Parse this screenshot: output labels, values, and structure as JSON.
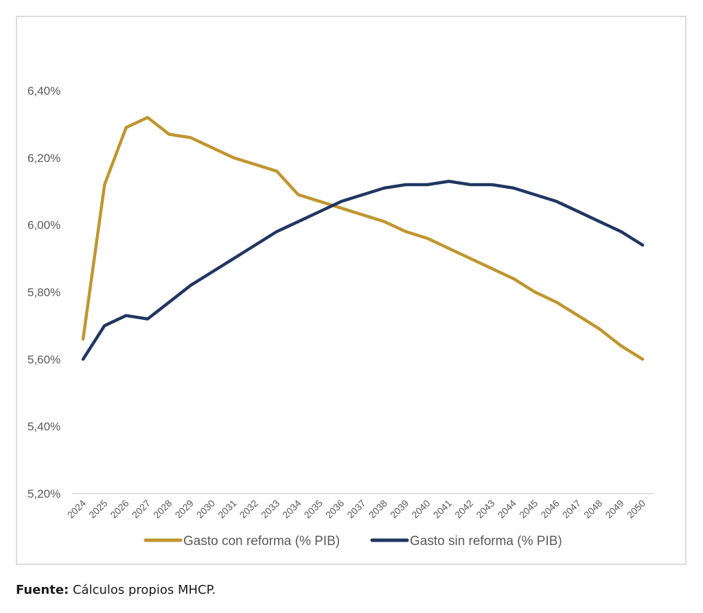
{
  "chart_data": {
    "type": "line",
    "title": "",
    "xlabel": "",
    "ylabel": "",
    "x": [
      "2024",
      "2025",
      "2026",
      "2027",
      "2028",
      "2029",
      "2030",
      "2031",
      "2032",
      "2033",
      "2034",
      "2035",
      "2036",
      "2037",
      "2038",
      "2039",
      "2040",
      "2041",
      "2042",
      "2043",
      "2044",
      "2045",
      "2046",
      "2047",
      "2048",
      "2049",
      "2050"
    ],
    "ylim": [
      5.2,
      6.4
    ],
    "yticks": [
      5.2,
      5.4,
      5.6,
      5.8,
      6.0,
      6.2,
      6.4
    ],
    "ytick_labels": [
      "5,20%",
      "5,40%",
      "5,60%",
      "5,80%",
      "6,00%",
      "6,20%",
      "6,40%"
    ],
    "grid": false,
    "legend_position": "bottom",
    "series": [
      {
        "name": "Gasto con reforma (% PIB)",
        "color": "#BF9630",
        "values": [
          5.66,
          6.12,
          6.29,
          6.32,
          6.27,
          6.26,
          6.23,
          6.2,
          6.18,
          6.16,
          6.09,
          6.07,
          6.05,
          6.03,
          6.01,
          5.98,
          5.96,
          5.93,
          5.9,
          5.87,
          5.84,
          5.8,
          5.77,
          5.73,
          5.69,
          5.64,
          5.6
        ]
      },
      {
        "name": "Gasto sin reforma (% PIB)",
        "color": "#213661",
        "values": [
          5.6,
          5.7,
          5.73,
          5.72,
          5.77,
          5.82,
          5.86,
          5.9,
          5.94,
          5.98,
          6.01,
          6.04,
          6.07,
          6.09,
          6.11,
          6.12,
          6.12,
          6.13,
          6.12,
          6.12,
          6.11,
          6.09,
          6.07,
          6.04,
          6.01,
          5.98,
          5.94
        ]
      }
    ]
  },
  "source": {
    "label": "Fuente:",
    "text": " Cálculos propios MHCP."
  }
}
